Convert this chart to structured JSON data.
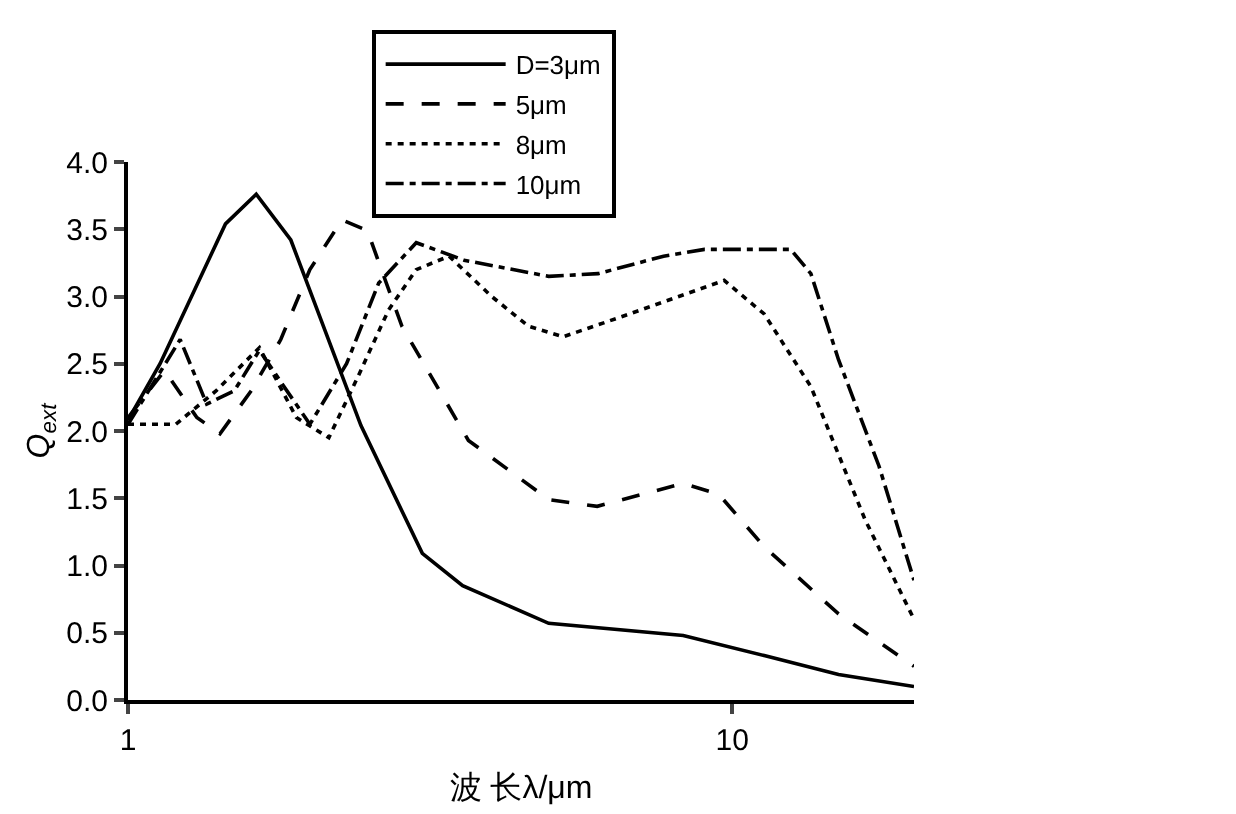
{
  "chart_data": {
    "type": "line",
    "xlabel": "波 长λ/μm",
    "ylabel": "Q$_{ext}$",
    "log": "x",
    "xlim": [
      1,
      20
    ],
    "xticks": [
      1,
      10
    ],
    "ylim": [
      0,
      4
    ],
    "yticks": [
      {
        "value": 0,
        "label": "0.0"
      },
      {
        "value": 0.5,
        "label": "0.5"
      },
      {
        "value": 1,
        "label": "1.0"
      },
      {
        "value": 1.5,
        "label": "1.5"
      },
      {
        "value": 2,
        "label": "2.0"
      },
      {
        "value": 2.5,
        "label": "2.5"
      },
      {
        "value": 3,
        "label": "3.0"
      },
      {
        "value": 3.5,
        "label": "3.5"
      },
      {
        "value": 4,
        "label": "4.0"
      }
    ],
    "grid": false,
    "legend": "top",
    "marker": "none",
    "series": [
      {
        "name": "D=3μm",
        "color": "#000000",
        "line_style": "solid",
        "x": [
          1,
          1.13,
          1.45,
          1.63,
          1.86,
          2.43,
          3.07,
          3.58,
          4.97,
          8.3,
          11.3,
          15,
          20
        ],
        "values": [
          2.08,
          2.5,
          3.54,
          3.76,
          3.42,
          2.04,
          1.09,
          0.85,
          0.57,
          0.48,
          0.33,
          0.19,
          0.1
        ]
      },
      {
        "name": "5μm",
        "color": "#000000",
        "line_style": "dashed",
        "x": [
          1,
          1.15,
          1.3,
          1.42,
          1.6,
          1.79,
          2.0,
          2.26,
          2.49,
          2.84,
          3.66,
          4.97,
          5.98,
          8.3,
          9.5,
          11.3,
          15,
          20
        ],
        "values": [
          2.1,
          2.45,
          2.1,
          1.98,
          2.3,
          2.68,
          3.2,
          3.57,
          3.49,
          2.78,
          1.93,
          1.49,
          1.44,
          1.61,
          1.53,
          1.14,
          0.64,
          0.25
        ]
      },
      {
        "name": "8μm",
        "color": "#000000",
        "line_style": "dotted",
        "x": [
          1,
          1.2,
          1.4,
          1.65,
          1.9,
          2.15,
          2.4,
          2.7,
          3.0,
          3.4,
          4.0,
          4.6,
          5.25,
          6.76,
          9.7,
          11.3,
          13.5,
          16.6,
          20
        ],
        "values": [
          2.05,
          2.05,
          2.3,
          2.62,
          2.1,
          1.95,
          2.4,
          2.9,
          3.2,
          3.3,
          3.0,
          2.78,
          2.7,
          2.87,
          3.12,
          2.87,
          2.33,
          1.34,
          0.6
        ]
      },
      {
        "name": "10μm",
        "color": "#000000",
        "line_style": "dashdot",
        "x": [
          1,
          1.22,
          1.35,
          1.5,
          1.65,
          1.8,
          2.0,
          2.3,
          2.6,
          3.0,
          3.6,
          4.97,
          6,
          7.7,
          9,
          12.5,
          13.5,
          15,
          17.5,
          20
        ],
        "values": [
          2.05,
          2.68,
          2.2,
          2.3,
          2.6,
          2.35,
          2.05,
          2.5,
          3.1,
          3.4,
          3.27,
          3.15,
          3.17,
          3.3,
          3.35,
          3.35,
          3.17,
          2.53,
          1.74,
          0.89
        ]
      }
    ]
  }
}
